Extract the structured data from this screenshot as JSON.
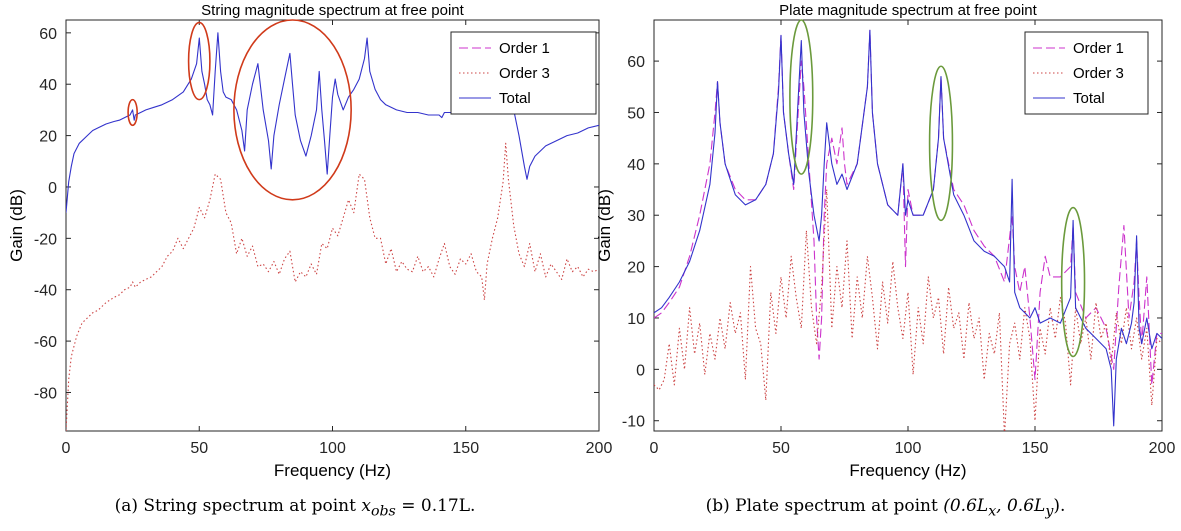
{
  "chart_data": [
    {
      "type": "line",
      "title": "String magnitude spectrum at free point",
      "xlabel": "Frequency (Hz)",
      "ylabel": "Gain (dB)",
      "xlim": [
        0,
        200
      ],
      "ylim": [
        -95,
        65
      ],
      "xticks": [
        0,
        50,
        100,
        150,
        200
      ],
      "yticks": [
        -80,
        -60,
        -40,
        -20,
        0,
        20,
        40,
        60
      ],
      "grid": false,
      "legend_position": "top-right",
      "series": [
        {
          "name": "Order 1",
          "style": "dashed",
          "color": "#cc33cc",
          "x": [],
          "y": []
        },
        {
          "name": "Order 3",
          "style": "dotted",
          "color": "#cc4444",
          "x": [
            0,
            1,
            2,
            4,
            6,
            8,
            10,
            12,
            15,
            18,
            20,
            22,
            24,
            25,
            26,
            28,
            30,
            32,
            34,
            36,
            38,
            40,
            42,
            44,
            46,
            48,
            50,
            52,
            54,
            56,
            58,
            60,
            62,
            64,
            66,
            68,
            70,
            72,
            74,
            76,
            78,
            80,
            82,
            84,
            86,
            88,
            90,
            92,
            94,
            96,
            98,
            100,
            102,
            104,
            106,
            108,
            110,
            112,
            114,
            116,
            118,
            120,
            122,
            124,
            126,
            128,
            130,
            132,
            134,
            136,
            138,
            140,
            142,
            144,
            146,
            148,
            150,
            152,
            154,
            156,
            157,
            158,
            160,
            162,
            164,
            165,
            166,
            168,
            170,
            172,
            174,
            176,
            178,
            180,
            182,
            184,
            186,
            188,
            190,
            192,
            194,
            196,
            198,
            200
          ],
          "y": [
            -95,
            -75,
            -66,
            -58,
            -53,
            -51,
            -49,
            -48,
            -45,
            -43,
            -42,
            -40,
            -39,
            -37,
            -39,
            -37,
            -36,
            -35,
            -33,
            -31,
            -27,
            -25,
            -20,
            -24,
            -20,
            -16,
            -8,
            -12,
            -5,
            5,
            3,
            -10,
            -14,
            -26,
            -20,
            -27,
            -23,
            -31,
            -30,
            -33,
            -29,
            -34,
            -28,
            -25,
            -37,
            -33,
            -35,
            -30,
            -34,
            -22,
            -24,
            -16,
            -19,
            -12,
            -5,
            -10,
            5,
            3,
            -12,
            -20,
            -20,
            -30,
            -24,
            -33,
            -29,
            -32,
            -33,
            -27,
            -33,
            -31,
            -35,
            -28,
            -22,
            -31,
            -34,
            -28,
            -30,
            -26,
            -33,
            -35,
            -44,
            -30,
            -20,
            -12,
            2,
            17,
            3,
            -15,
            -26,
            -31,
            -22,
            -33,
            -26,
            -35,
            -30,
            -33,
            -36,
            -28,
            -33,
            -31,
            -35,
            -32,
            -33,
            -32
          ]
        },
        {
          "name": "Total",
          "style": "solid",
          "color": "#3333cc",
          "x": [
            0,
            1,
            2,
            3,
            5,
            8,
            10,
            12,
            15,
            18,
            20,
            22,
            23,
            24,
            25,
            25.6,
            26,
            28,
            30,
            33,
            36,
            40,
            44,
            47,
            49,
            50,
            51,
            52,
            53,
            54,
            55,
            56,
            57,
            58,
            59,
            60,
            62,
            64,
            66,
            67,
            68,
            70,
            72,
            74,
            76,
            77,
            78,
            80,
            82,
            84,
            85,
            86,
            88,
            90,
            92,
            94,
            95,
            96,
            97,
            98,
            99,
            100,
            101,
            102,
            104,
            106,
            108,
            110,
            112,
            113,
            114,
            116,
            118,
            120,
            124,
            128,
            132,
            136,
            140,
            141,
            142,
            146,
            150,
            156,
            160,
            164,
            166,
            168,
            170,
            172,
            173,
            174,
            176,
            180,
            184,
            188,
            192,
            196,
            200
          ],
          "y": [
            -10,
            2,
            8,
            13,
            17,
            20,
            22,
            23,
            24.5,
            25.5,
            26,
            27,
            27.5,
            28,
            30,
            26,
            28,
            29,
            30,
            31,
            32,
            34,
            37,
            42,
            48,
            58,
            45,
            40,
            34,
            32,
            28,
            45,
            60,
            45,
            37,
            35,
            34,
            30,
            22,
            14,
            30,
            40,
            48,
            30,
            18,
            7,
            20,
            32,
            42,
            52,
            40,
            28,
            18,
            12,
            20,
            30,
            45,
            30,
            18,
            5,
            20,
            35,
            42,
            36,
            30,
            35,
            38,
            42,
            50,
            58,
            45,
            38,
            34,
            32,
            30,
            29,
            29,
            28,
            28,
            27,
            29,
            29,
            29,
            30,
            31,
            32,
            34,
            30,
            20,
            8,
            3,
            8,
            12,
            16,
            18,
            20,
            21,
            23,
            24
          ]
        }
      ],
      "annotations": [
        {
          "shape": "ellipse",
          "color": "#d03a1a",
          "center": [
            25,
            29
          ],
          "rx": 1.7,
          "ry": 5
        },
        {
          "shape": "ellipse",
          "color": "#d03a1a",
          "center": [
            50,
            49
          ],
          "rx": 4,
          "ry": 15
        },
        {
          "shape": "ellipse",
          "color": "#d03a1a",
          "center": [
            85,
            30
          ],
          "rx": 22,
          "ry": 35
        }
      ]
    },
    {
      "type": "line",
      "title": "Plate magnitude spectrum at free point",
      "xlabel": "Frequency (Hz)",
      "ylabel": "Gain (dB)",
      "xlim": [
        0,
        200
      ],
      "ylim": [
        -12,
        68
      ],
      "xticks": [
        0,
        50,
        100,
        150,
        200
      ],
      "yticks": [
        -10,
        0,
        10,
        20,
        30,
        40,
        50,
        60
      ],
      "grid": false,
      "legend_position": "top-right",
      "series": [
        {
          "name": "Order 1",
          "style": "dashed",
          "color": "#cc33cc",
          "x": [
            0,
            3,
            6,
            10,
            14,
            18,
            22,
            24,
            25,
            26,
            28,
            32,
            36,
            40,
            44,
            47,
            49,
            50,
            51,
            53,
            55,
            57,
            58,
            59,
            61,
            63,
            64,
            65,
            66,
            67,
            68,
            70,
            72,
            74,
            75,
            76,
            80,
            84,
            85,
            86,
            88,
            92,
            96,
            98,
            99,
            100,
            102,
            106,
            110,
            112,
            113,
            114,
            118,
            122,
            126,
            130,
            134,
            138,
            141,
            142,
            144,
            146,
            148,
            150,
            152,
            154,
            156,
            160,
            164,
            165,
            166,
            170,
            174,
            178,
            181,
            183,
            185,
            187,
            189,
            190,
            191,
            192,
            194,
            196,
            198,
            200
          ],
          "y": [
            10,
            11,
            13,
            16,
            22,
            30,
            40,
            50,
            56,
            48,
            40,
            35,
            33,
            33,
            36,
            42,
            55,
            65,
            50,
            42,
            35,
            52,
            60,
            55,
            40,
            25,
            10,
            2,
            10,
            30,
            40,
            45,
            40,
            47,
            40,
            36,
            40,
            55,
            66,
            50,
            40,
            32,
            30,
            40,
            20,
            35,
            30,
            30,
            35,
            45,
            57,
            45,
            35,
            32,
            27,
            24,
            22,
            17,
            30,
            20,
            15,
            20,
            10,
            -2,
            15,
            22,
            18,
            18,
            20,
            28,
            15,
            10,
            12,
            8,
            0,
            16,
            28,
            10,
            17,
            25,
            14,
            5,
            18,
            -3,
            7,
            7
          ]
        },
        {
          "name": "Order 3",
          "style": "dotted",
          "color": "#cc4444",
          "x": [
            0,
            2,
            4,
            6,
            8,
            10,
            12,
            14,
            16,
            18,
            20,
            22,
            24,
            26,
            28,
            30,
            32,
            34,
            36,
            38,
            40,
            42,
            44,
            46,
            48,
            50,
            52,
            54,
            56,
            58,
            60,
            62,
            64,
            66,
            68,
            70,
            72,
            74,
            76,
            78,
            80,
            82,
            84,
            86,
            88,
            90,
            92,
            94,
            96,
            98,
            100,
            102,
            104,
            106,
            108,
            110,
            112,
            114,
            116,
            118,
            120,
            122,
            124,
            126,
            128,
            130,
            132,
            134,
            136,
            138,
            140,
            142,
            144,
            146,
            148,
            150,
            152,
            154,
            156,
            158,
            160,
            162,
            164,
            166,
            168,
            170,
            172,
            174,
            176,
            178,
            180,
            182,
            184,
            186,
            188,
            190,
            192,
            194,
            196,
            198,
            200
          ],
          "y": [
            -3,
            -4,
            -2,
            5,
            -3,
            8,
            0,
            12,
            3,
            9,
            -1,
            7,
            2,
            10,
            4,
            13,
            7,
            11,
            -2,
            20,
            8,
            5,
            -6,
            15,
            7,
            18,
            10,
            22,
            14,
            8,
            27,
            12,
            5,
            16,
            35,
            8,
            20,
            12,
            25,
            6,
            18,
            10,
            22,
            14,
            4,
            17,
            9,
            21,
            12,
            6,
            15,
            -1,
            12,
            5,
            18,
            10,
            14,
            3,
            16,
            8,
            11,
            2,
            13,
            6,
            10,
            -2,
            7,
            3,
            11,
            -13,
            5,
            9,
            2,
            12,
            6,
            -10,
            8,
            3,
            12,
            6,
            14,
            9,
            -3,
            12,
            5,
            10,
            2,
            13,
            6,
            9,
            1,
            11,
            5,
            12,
            4,
            10,
            2,
            8,
            -7,
            6,
            5
          ]
        },
        {
          "name": "Total",
          "style": "solid",
          "color": "#3333cc",
          "x": [
            0,
            3,
            6,
            10,
            14,
            18,
            22,
            24,
            25,
            26,
            28,
            32,
            36,
            40,
            44,
            47,
            49,
            50,
            51,
            53,
            55,
            57,
            58,
            59,
            61,
            63,
            65,
            66,
            67,
            68,
            70,
            72,
            74,
            76,
            80,
            84,
            85,
            86,
            88,
            92,
            96,
            98,
            99,
            100,
            102,
            106,
            110,
            112,
            113,
            114,
            118,
            122,
            126,
            130,
            134,
            136,
            138,
            140,
            141,
            142,
            144,
            146,
            148,
            150,
            152,
            156,
            160,
            164,
            165,
            166,
            170,
            174,
            178,
            180,
            181,
            182,
            184,
            186,
            188,
            189,
            190,
            191,
            192,
            194,
            196,
            198,
            200
          ],
          "y": [
            11,
            12,
            14,
            17,
            21,
            27,
            36,
            46,
            56,
            48,
            40,
            34,
            32,
            33,
            36,
            42,
            54,
            65,
            50,
            42,
            36,
            55,
            64,
            50,
            38,
            30,
            25,
            30,
            40,
            48,
            40,
            36,
            38,
            35,
            40,
            55,
            66,
            50,
            40,
            32,
            30,
            40,
            30,
            33,
            30,
            30,
            35,
            45,
            57,
            45,
            34,
            30,
            25,
            23,
            22,
            21,
            20,
            17,
            37,
            15,
            12,
            11,
            10,
            12,
            9,
            10,
            9,
            14,
            29,
            12,
            8,
            6,
            4,
            0,
            -11,
            2,
            8,
            5,
            9,
            13,
            26,
            8,
            5,
            10,
            4,
            7,
            6
          ]
        }
      ],
      "annotations": [
        {
          "shape": "ellipse",
          "color": "#6b9a3c",
          "center": [
            58,
            53
          ],
          "rx": 4.5,
          "ry": 15
        },
        {
          "shape": "ellipse",
          "color": "#6b9a3c",
          "center": [
            113,
            44
          ],
          "rx": 4.5,
          "ry": 15
        },
        {
          "shape": "ellipse",
          "color": "#6b9a3c",
          "center": [
            165,
            17
          ],
          "rx": 4.5,
          "ry": 14.5
        }
      ]
    }
  ],
  "captions": {
    "a_text": "(a) String spectrum at point ",
    "a_math": "x",
    "a_sub": "obs",
    "a_tail": " = 0.17L.",
    "b_text": "(b) Plate spectrum at point ",
    "b_math": "(0.6L",
    "b_sub1": "x",
    "b_mid": ", 0.6L",
    "b_sub2": "y",
    "b_tail": ")."
  }
}
